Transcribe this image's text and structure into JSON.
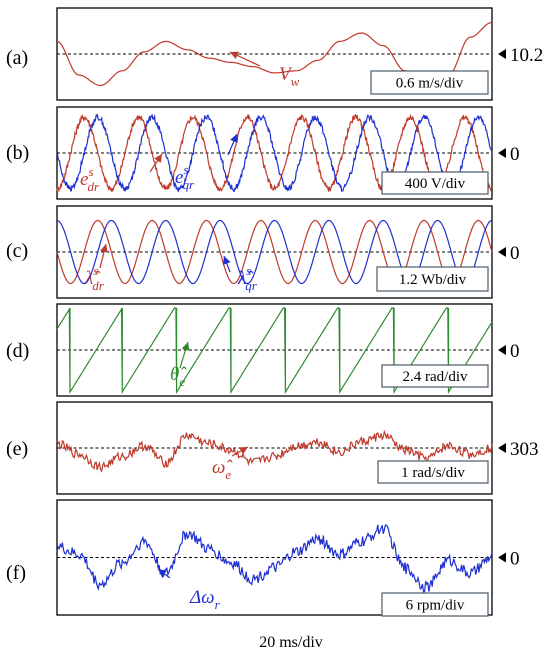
{
  "chart_data": [
    {
      "type": "line",
      "panel_label": "(a)",
      "reference_value": "10.2",
      "scale": "0.6 m/s/div",
      "x_divisions": 10,
      "y_divisions": 2,
      "series": [
        {
          "name": "V",
          "subscript": "w",
          "color": "#c0392b",
          "x": [
            0,
            0.5,
            1,
            1.5,
            2,
            2.5,
            3,
            3.5,
            4,
            4.5,
            5,
            5.5,
            6,
            6.5,
            7,
            7.5,
            8,
            8.5,
            9,
            9.5,
            10
          ],
          "values": [
            0.3,
            -0.5,
            -0.75,
            -0.4,
            0.05,
            0.3,
            0.1,
            -0.1,
            -0.2,
            -0.3,
            -0.45,
            -0.4,
            -0.15,
            0.3,
            0.5,
            0.2,
            -0.4,
            -0.7,
            -0.5,
            0.4,
            0.75
          ]
        }
      ]
    },
    {
      "type": "line",
      "panel_label": "(b)",
      "reference_value": "0",
      "scale": "400 V/div",
      "x_divisions": 10,
      "y_divisions": 2,
      "series": [
        {
          "name": "e",
          "superscript": "s",
          "subscript": "dr",
          "color": "#c0392b",
          "amplitude": 0.85,
          "cycles": 8.0,
          "phase_deg": -90
        },
        {
          "name": "e",
          "superscript": "s",
          "subscript": "qr",
          "color": "#1f2fd0",
          "amplitude": 0.85,
          "cycles": 8.0,
          "phase_deg": 180
        }
      ]
    },
    {
      "type": "line",
      "panel_label": "(c)",
      "reference_value": "0",
      "scale": "1.2 Wb/div",
      "x_divisions": 10,
      "y_divisions": 2,
      "series": [
        {
          "name": "λ̂",
          "superscript": "s",
          "subscript": "dr",
          "color": "#c0392b",
          "amplitude": 0.75,
          "cycles": 8.0,
          "phase_deg": 180
        },
        {
          "name": "λ̂",
          "superscript": "s",
          "subscript": "qr",
          "color": "#1f2fd0",
          "amplitude": 0.75,
          "cycles": 8.0,
          "phase_deg": 90
        }
      ]
    },
    {
      "type": "line",
      "panel_label": "(d)",
      "reference_value": "0",
      "scale": "2.4 rad/div",
      "x_divisions": 10,
      "y_divisions": 2,
      "series": [
        {
          "name": "θ̂",
          "subscript": "e",
          "color": "#2e8b2e",
          "shape": "sawtooth",
          "y_range": [
            -1.0,
            1.0
          ],
          "reset_x": [
            0.3,
            1.5,
            2.75,
            4.0,
            5.25,
            6.5,
            7.75,
            9.0
          ]
        }
      ]
    },
    {
      "type": "line",
      "panel_label": "(e)",
      "reference_value": "303",
      "scale": "1 rad/s/div",
      "x_divisions": 10,
      "y_divisions": 2,
      "series": [
        {
          "name": "ω̂",
          "subscript": "e",
          "color": "#c0392b",
          "x": [
            0,
            0.5,
            1,
            1.5,
            2,
            2.5,
            3,
            3.5,
            4,
            4.5,
            5,
            5.5,
            6,
            6.5,
            7,
            7.5,
            8,
            8.5,
            9,
            9.5,
            10
          ],
          "values": [
            0.1,
            -0.15,
            -0.45,
            -0.2,
            0.05,
            -0.35,
            0.3,
            0.1,
            -0.05,
            -0.35,
            -0.2,
            0.05,
            0.15,
            -0.1,
            0.15,
            0.3,
            -0.05,
            -0.25,
            0.05,
            -0.15,
            0.0
          ]
        }
      ]
    },
    {
      "type": "line",
      "panel_label": "(f)",
      "reference_value": "0",
      "scale": "6 rpm/div",
      "x_divisions": 10,
      "y_divisions": 2,
      "series": [
        {
          "name": "Δω",
          "subscript": "r",
          "color": "#1f2fd0",
          "x": [
            0,
            0.5,
            1,
            1.5,
            2,
            2.5,
            3,
            3.5,
            4,
            4.5,
            5,
            5.5,
            6,
            6.5,
            7,
            7.5,
            8,
            8.5,
            9,
            9.5,
            10
          ],
          "values": [
            0.2,
            0.05,
            -0.5,
            -0.1,
            0.3,
            -0.3,
            0.45,
            0.15,
            -0.1,
            -0.4,
            -0.2,
            0.1,
            0.35,
            0.05,
            0.3,
            0.55,
            -0.2,
            -0.55,
            -0.05,
            -0.3,
            0.0
          ]
        }
      ]
    }
  ],
  "footer": {
    "time_scale": "20 ms/div"
  }
}
